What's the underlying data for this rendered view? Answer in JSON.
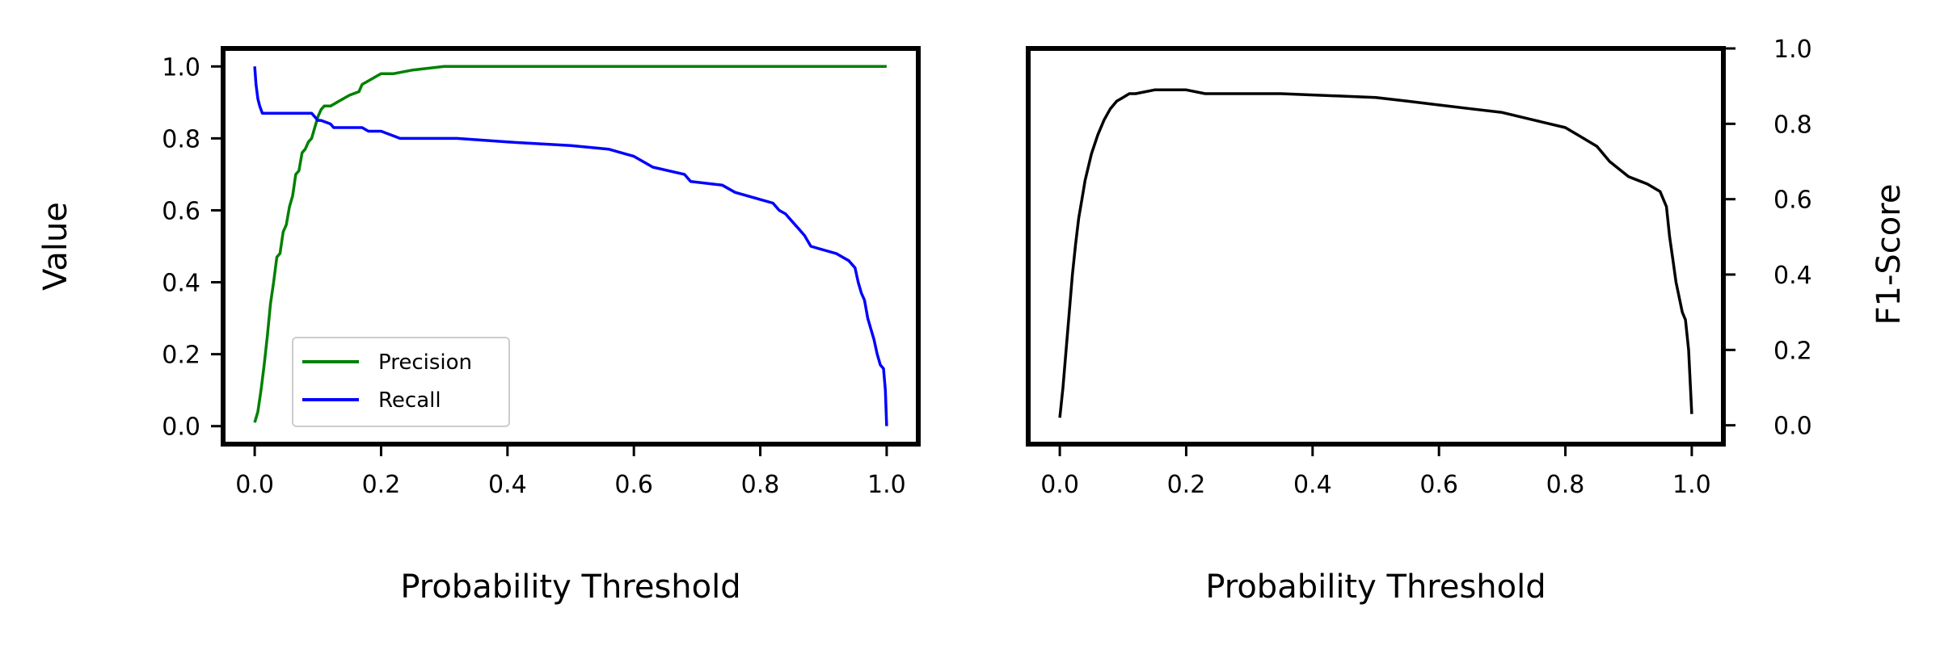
{
  "chart_data": [
    {
      "type": "line",
      "xlabel": "Probability Threshold",
      "ylabel": "Value",
      "xlim": [
        -0.05,
        1.05
      ],
      "ylim": [
        -0.05,
        1.05
      ],
      "xticks": [
        0.0,
        0.2,
        0.4,
        0.6,
        0.8,
        1.0
      ],
      "yticks": [
        0.0,
        0.2,
        0.4,
        0.6,
        0.8,
        1.0
      ],
      "tick_labels_x": [
        "0.0",
        "0.2",
        "0.4",
        "0.6",
        "0.8",
        "1.0"
      ],
      "tick_labels_y": [
        "0.0",
        "0.2",
        "0.4",
        "0.6",
        "0.8",
        "1.0"
      ],
      "grid": false,
      "legend": "lower-left",
      "series": [
        {
          "name": "Precision",
          "color": "#008000",
          "x": [
            0.0,
            0.005,
            0.01,
            0.015,
            0.02,
            0.025,
            0.03,
            0.035,
            0.04,
            0.045,
            0.05,
            0.055,
            0.06,
            0.065,
            0.07,
            0.075,
            0.08,
            0.085,
            0.09,
            0.095,
            0.1,
            0.105,
            0.11,
            0.12,
            0.13,
            0.15,
            0.165,
            0.17,
            0.18,
            0.19,
            0.2,
            0.22,
            0.25,
            0.3,
            0.32,
            0.35,
            0.5,
            0.7,
            1.0
          ],
          "y": [
            0.01,
            0.04,
            0.1,
            0.17,
            0.25,
            0.34,
            0.4,
            0.47,
            0.48,
            0.54,
            0.56,
            0.61,
            0.64,
            0.7,
            0.71,
            0.76,
            0.77,
            0.79,
            0.8,
            0.83,
            0.86,
            0.88,
            0.89,
            0.89,
            0.9,
            0.92,
            0.93,
            0.95,
            0.96,
            0.97,
            0.98,
            0.98,
            0.99,
            1.0,
            1.0,
            1.0,
            1.0,
            1.0,
            1.0
          ]
        },
        {
          "name": "Recall",
          "color": "#0000ff",
          "x": [
            0.0,
            0.002,
            0.005,
            0.008,
            0.012,
            0.02,
            0.05,
            0.09,
            0.1,
            0.105,
            0.12,
            0.125,
            0.17,
            0.18,
            0.2,
            0.23,
            0.32,
            0.4,
            0.5,
            0.56,
            0.6,
            0.62,
            0.63,
            0.68,
            0.69,
            0.74,
            0.76,
            0.8,
            0.82,
            0.83,
            0.84,
            0.85,
            0.86,
            0.87,
            0.88,
            0.9,
            0.92,
            0.94,
            0.95,
            0.955,
            0.96,
            0.965,
            0.97,
            0.975,
            0.98,
            0.985,
            0.99,
            0.995,
            0.998,
            1.0
          ],
          "y": [
            1.0,
            0.95,
            0.91,
            0.89,
            0.87,
            0.87,
            0.87,
            0.87,
            0.85,
            0.85,
            0.84,
            0.83,
            0.83,
            0.82,
            0.82,
            0.8,
            0.8,
            0.79,
            0.78,
            0.77,
            0.75,
            0.73,
            0.72,
            0.7,
            0.68,
            0.67,
            0.65,
            0.63,
            0.62,
            0.6,
            0.59,
            0.57,
            0.55,
            0.53,
            0.5,
            0.49,
            0.48,
            0.46,
            0.44,
            0.4,
            0.37,
            0.35,
            0.3,
            0.27,
            0.24,
            0.2,
            0.17,
            0.16,
            0.1,
            0.0
          ]
        }
      ]
    },
    {
      "type": "line",
      "xlabel": "Probability Threshold",
      "ylabel": "F1-Score",
      "ylabel_side": "right",
      "xlim": [
        -0.05,
        1.05
      ],
      "ylim": [
        -0.05,
        1.0
      ],
      "xticks": [
        0.0,
        0.2,
        0.4,
        0.6,
        0.8,
        1.0
      ],
      "yticks": [
        0.0,
        0.2,
        0.4,
        0.6,
        0.8,
        1.0
      ],
      "tick_labels_x": [
        "0.0",
        "0.2",
        "0.4",
        "0.6",
        "0.8",
        "1.0"
      ],
      "tick_labels_y": [
        "0.0",
        "0.2",
        "0.4",
        "0.6",
        "0.8",
        "1.0"
      ],
      "grid": false,
      "series": [
        {
          "color": "#000000",
          "x": [
            0.0,
            0.005,
            0.01,
            0.015,
            0.02,
            0.025,
            0.03,
            0.035,
            0.04,
            0.05,
            0.06,
            0.07,
            0.08,
            0.09,
            0.1,
            0.11,
            0.12,
            0.15,
            0.17,
            0.2,
            0.23,
            0.3,
            0.35,
            0.5,
            0.55,
            0.6,
            0.65,
            0.7,
            0.75,
            0.8,
            0.82,
            0.85,
            0.87,
            0.9,
            0.93,
            0.95,
            0.96,
            0.965,
            0.97,
            0.975,
            0.98,
            0.985,
            0.99,
            0.995,
            0.998,
            1.0
          ],
          "y": [
            0.02,
            0.1,
            0.2,
            0.3,
            0.4,
            0.48,
            0.55,
            0.6,
            0.65,
            0.72,
            0.77,
            0.81,
            0.84,
            0.86,
            0.87,
            0.88,
            0.88,
            0.89,
            0.89,
            0.89,
            0.88,
            0.88,
            0.88,
            0.87,
            0.86,
            0.85,
            0.84,
            0.83,
            0.81,
            0.79,
            0.77,
            0.74,
            0.7,
            0.66,
            0.64,
            0.62,
            0.58,
            0.5,
            0.44,
            0.38,
            0.34,
            0.3,
            0.28,
            0.2,
            0.1,
            0.03
          ]
        }
      ]
    }
  ]
}
